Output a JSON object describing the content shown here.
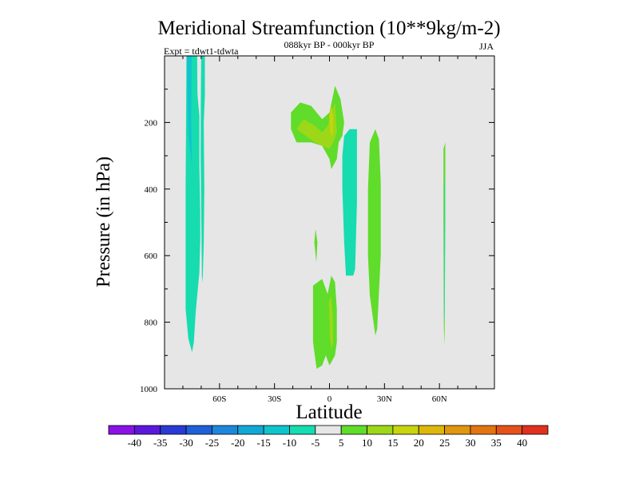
{
  "chart_data": {
    "type": "heatmap",
    "title": "Meridional Streamfunction (10**9kg/m-2)",
    "subtitle": "088kyr BP - 000kyr BP",
    "season": "JJA",
    "experiment_label": "Expt = tdwt1-tdwta",
    "xlabel": "Latitude",
    "ylabel": "Pressure (in hPa)",
    "xlim": [
      -90,
      90
    ],
    "ylim": [
      0,
      1000
    ],
    "y_reversed": true,
    "x_ticks": [
      {
        "value": -60,
        "label": "60S"
      },
      {
        "value": -30,
        "label": "30S"
      },
      {
        "value": 0,
        "label": "0"
      },
      {
        "value": 30,
        "label": "30N"
      },
      {
        "value": 60,
        "label": "60N"
      }
    ],
    "y_ticks": [
      {
        "value": 200,
        "label": "200"
      },
      {
        "value": 400,
        "label": "400"
      },
      {
        "value": 600,
        "label": "600"
      },
      {
        "value": 800,
        "label": "800"
      },
      {
        "value": 1000,
        "label": "1000"
      }
    ],
    "background_color": "#e6e6e6",
    "colorbar": {
      "levels": [
        "-40",
        "-35",
        "-30",
        "-25",
        "-20",
        "-15",
        "-10",
        "-5",
        "5",
        "10",
        "15",
        "20",
        "25",
        "30",
        "35",
        "40"
      ],
      "colors": [
        "#8a12e6",
        "#5a18dc",
        "#2a3ad4",
        "#1f5fd8",
        "#1c88dc",
        "#12a8d6",
        "#10c4cc",
        "#16dcb0",
        "#e6e6e6",
        "#60dc2a",
        "#9cd818",
        "#c8d40e",
        "#dcb80c",
        "#e0960e",
        "#e27412",
        "#e4521a",
        "#e0301e"
      ]
    },
    "regions": [
      {
        "name": "sh-polar-negative-cell",
        "level": "-10 to -5",
        "color": "#16dcb0",
        "polygon": [
          [
            -78,
            0
          ],
          [
            -73.5,
            0
          ],
          [
            -72.5,
            90
          ],
          [
            -71,
            180
          ],
          [
            -71,
            330
          ],
          [
            -70.5,
            470
          ],
          [
            -70.5,
            550
          ],
          [
            -71,
            650
          ],
          [
            -73,
            770
          ],
          [
            -74,
            860
          ],
          [
            -75,
            890
          ],
          [
            -77,
            850
          ],
          [
            -78.5,
            760
          ],
          [
            -78.5,
            650
          ],
          [
            -78.5,
            400
          ]
        ]
      },
      {
        "name": "sh-polar-negative-core",
        "level": "-15 to -10",
        "color": "#10c4cc",
        "polygon": [
          [
            -78,
            0
          ],
          [
            -75.2,
            0
          ],
          [
            -75.5,
            200
          ],
          [
            -75,
            330
          ],
          [
            -77,
            240
          ]
        ]
      },
      {
        "name": "sh-polar-negative-inner",
        "level": "-10 to -5",
        "color": "#16dcb0",
        "polygon": [
          [
            -74,
            0
          ],
          [
            -72.2,
            0
          ],
          [
            -72,
            140
          ],
          [
            -72.5,
            260
          ],
          [
            -73.4,
            560
          ],
          [
            -73.8,
            600
          ]
        ]
      },
      {
        "name": "sh-high-lat-negative-strip",
        "level": "-10 to -5",
        "color": "#16dcb0",
        "polygon": [
          [
            -70,
            0
          ],
          [
            -68,
            0
          ],
          [
            -68,
            120
          ],
          [
            -68.6,
            200
          ],
          [
            -68.3,
            400
          ],
          [
            -68.6,
            560
          ],
          [
            -69.2,
            680
          ],
          [
            -69.6,
            660
          ],
          [
            -70.3,
            300
          ],
          [
            -70.2,
            140
          ]
        ]
      },
      {
        "name": "tropical-upper-positive",
        "level": "5 to 10",
        "color": "#60dc2a",
        "polygon": [
          [
            -21,
            170
          ],
          [
            -16,
            140
          ],
          [
            -10,
            150
          ],
          [
            -4,
            190
          ],
          [
            0,
            170
          ],
          [
            3,
            90
          ],
          [
            6,
            130
          ],
          [
            8,
            200
          ],
          [
            7,
            240
          ],
          [
            5,
            260
          ],
          [
            4,
            310
          ],
          [
            1,
            340
          ],
          [
            0,
            310
          ],
          [
            -4,
            270
          ],
          [
            -10,
            260
          ],
          [
            -18,
            260
          ],
          [
            -21,
            220
          ]
        ]
      },
      {
        "name": "tropical-upper-positive-core",
        "level": "10 to 15",
        "color": "#9cd818",
        "polygon": [
          [
            -18,
            220
          ],
          [
            -14,
            190
          ],
          [
            -8,
            210
          ],
          [
            -4,
            230
          ],
          [
            -1,
            210
          ],
          [
            1,
            170
          ],
          [
            3,
            140
          ],
          [
            4,
            230
          ],
          [
            2,
            260
          ],
          [
            0,
            280
          ],
          [
            -4,
            270
          ],
          [
            -8,
            260
          ]
        ]
      },
      {
        "name": "tropical-upper-positive-peak",
        "level": "15 to 20",
        "color": "#c8d40e",
        "polygon": [
          [
            -0.2,
            180
          ],
          [
            1,
            150
          ],
          [
            2,
            185
          ],
          [
            1.8,
            240
          ],
          [
            0.8,
            235
          ]
        ]
      },
      {
        "name": "tropical-mid-small-positive",
        "level": "5 to 10",
        "color": "#60dc2a",
        "polygon": [
          [
            -8.3,
            560
          ],
          [
            -7.6,
            520
          ],
          [
            -6.6,
            560
          ],
          [
            -7.2,
            620
          ]
        ]
      },
      {
        "name": "tropical-lower-positive",
        "level": "5 to 10",
        "color": "#60dc2a",
        "polygon": [
          [
            -9,
            690
          ],
          [
            -4,
            670
          ],
          [
            -1,
            715
          ],
          [
            1,
            660
          ],
          [
            3,
            680
          ],
          [
            4,
            760
          ],
          [
            4,
            860
          ],
          [
            3,
            900
          ],
          [
            0,
            930
          ],
          [
            -2,
            900
          ],
          [
            -4,
            930
          ],
          [
            -7,
            940
          ],
          [
            -9,
            860
          ]
        ]
      },
      {
        "name": "tropical-lower-positive-core",
        "level": "10 to 15",
        "color": "#9cd818",
        "polygon": [
          [
            -0.3,
            740
          ],
          [
            0.8,
            720
          ],
          [
            1.8,
            780
          ],
          [
            2,
            860
          ],
          [
            1,
            880
          ],
          [
            0.2,
            840
          ]
        ]
      },
      {
        "name": "nh-tropical-negative-cell",
        "level": "-10 to -5",
        "color": "#16dcb0",
        "polygon": [
          [
            8,
            240
          ],
          [
            11,
            220
          ],
          [
            15,
            220
          ],
          [
            15,
            440
          ],
          [
            14,
            640
          ],
          [
            13,
            660
          ],
          [
            9,
            660
          ],
          [
            8,
            560
          ],
          [
            7,
            400
          ],
          [
            7,
            300
          ]
        ]
      },
      {
        "name": "nh-subtropical-positive-cell",
        "level": "5 to 10",
        "color": "#60dc2a",
        "polygon": [
          [
            22,
            260
          ],
          [
            25,
            220
          ],
          [
            27,
            250
          ],
          [
            28,
            380
          ],
          [
            28,
            600
          ],
          [
            26,
            820
          ],
          [
            25,
            840
          ],
          [
            24,
            800
          ],
          [
            22,
            720
          ],
          [
            21,
            600
          ],
          [
            21,
            400
          ]
        ]
      },
      {
        "name": "nh-midlat-positive-strip",
        "level": "5 to 10",
        "color": "#60dc2a",
        "polygon": [
          [
            62.2,
            280
          ],
          [
            63.2,
            260
          ],
          [
            63.2,
            500
          ],
          [
            62.8,
            870
          ],
          [
            62.4,
            820
          ],
          [
            62.2,
            500
          ]
        ]
      },
      {
        "name": "nh-midlat-negative-core",
        "level": "-10 to -5",
        "color": "#16dcb0",
        "polygon": [
          [
            62.6,
            380
          ],
          [
            62.9,
            360
          ],
          [
            62.9,
            560
          ],
          [
            62.8,
            780
          ],
          [
            62.5,
            800
          ],
          [
            62.4,
            560
          ]
        ]
      }
    ]
  }
}
